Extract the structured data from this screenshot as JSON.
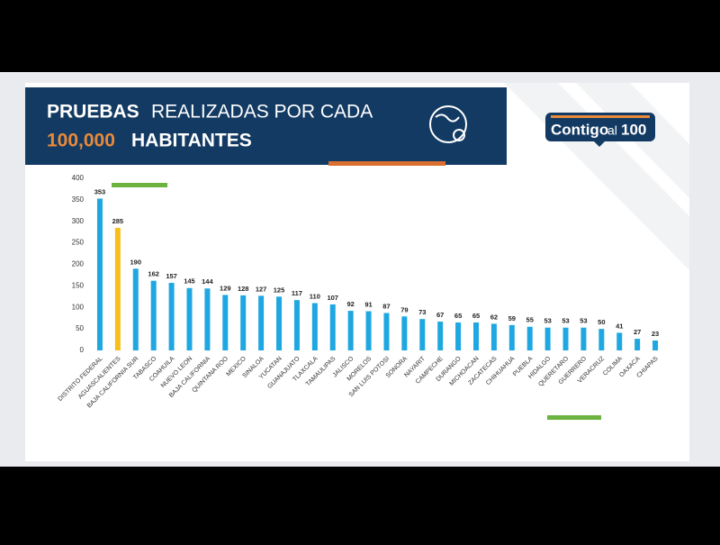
{
  "header": {
    "title": [
      "PRUEBAS",
      "REALIZADAS POR CADA",
      "100,000",
      "HABITANTES"
    ]
  },
  "logo": [
    "Contigo",
    "al",
    "100"
  ],
  "chart_data": {
    "type": "bar",
    "categories": [
      "DISTRITO FEDERAL",
      "AGUASCALIENTES",
      "BAJA CALIFORNIA SUR",
      "TABASCO",
      "COAHUILA",
      "NUEVO LEON",
      "BAJA CALIFORNIA",
      "QUINTANA ROO",
      "MEXICO",
      "SINALOA",
      "YUCATAN",
      "GUANAJUATO",
      "TLAXCALA",
      "TAMAULIPAS",
      "JALISCO",
      "MORELOS",
      "SAN LUIS POTOSI",
      "SONORA",
      "NAYARIT",
      "CAMPECHE",
      "DURANGO",
      "MICHOACAN",
      "ZACATECAS",
      "CHIHUAHUA",
      "PUEBLA",
      "HIDALGO",
      "QUERETARO",
      "GUERRERO",
      "VERACRUZ",
      "COLIMA",
      "OAXACA",
      "CHIAPAS"
    ],
    "values": [
      353,
      285,
      190,
      162,
      157,
      145,
      144,
      129,
      128,
      127,
      125,
      117,
      110,
      107,
      92,
      91,
      87,
      79,
      73,
      67,
      65,
      65,
      62,
      59,
      55,
      53,
      53,
      53,
      50,
      41,
      27,
      23
    ],
    "colors": [
      "#1ea7e1",
      "#f6bf1b",
      "#1ea7e1",
      "#1ea7e1",
      "#1ea7e1",
      "#1ea7e1",
      "#1ea7e1",
      "#1ea7e1",
      "#1ea7e1",
      "#1ea7e1",
      "#1ea7e1",
      "#1ea7e1",
      "#1ea7e1",
      "#1ea7e1",
      "#1ea7e1",
      "#1ea7e1",
      "#1ea7e1",
      "#1ea7e1",
      "#1ea7e1",
      "#1ea7e1",
      "#1ea7e1",
      "#1ea7e1",
      "#1ea7e1",
      "#1ea7e1",
      "#1ea7e1",
      "#1ea7e1",
      "#1ea7e1",
      "#1ea7e1",
      "#1ea7e1",
      "#1ea7e1",
      "#1ea7e1",
      "#1ea7e1"
    ],
    "ylim": [
      0,
      400
    ],
    "yticks": [
      0,
      50,
      100,
      150,
      200,
      250,
      300,
      350,
      400
    ],
    "grid": false
  }
}
